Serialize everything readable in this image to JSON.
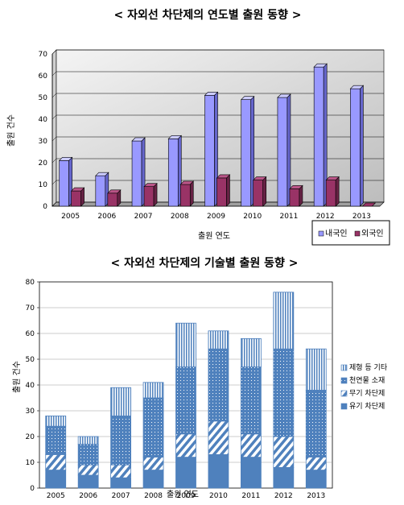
{
  "chart_data": [
    {
      "type": "bar",
      "title": "< 자외선 차단제의 연도별 출원 동향 >",
      "xlabel": "출원 연도",
      "ylabel": "출원 건수",
      "categories": [
        "2005",
        "2006",
        "2007",
        "2008",
        "2009",
        "2010",
        "2011",
        "2012",
        "2013"
      ],
      "ylim": [
        0,
        70
      ],
      "yticks": [
        0,
        10,
        20,
        30,
        40,
        50,
        60,
        70
      ],
      "series": [
        {
          "name": "내국인",
          "values": [
            21,
            14,
            30,
            31,
            51,
            49,
            50,
            64,
            54
          ]
        },
        {
          "name": "외국인",
          "values": [
            7,
            6,
            9,
            10,
            13,
            12,
            8,
            12,
            0
          ]
        }
      ],
      "grid": true,
      "legend": "bottom-right",
      "colors": {
        "series0": "#9999ff",
        "series1": "#993366"
      },
      "style": "3d"
    },
    {
      "type": "bar",
      "stacked": true,
      "title": "< 자외선 차단제의 기술별 출원 동향 >",
      "xlabel": "출원 연도",
      "ylabel": "출원 건수",
      "categories": [
        "2005",
        "2006",
        "2007",
        "2008",
        "2009",
        "2010",
        "2011",
        "2012",
        "2013"
      ],
      "ylim": [
        0,
        80
      ],
      "yticks": [
        0,
        10,
        20,
        30,
        40,
        50,
        60,
        70,
        80
      ],
      "series": [
        {
          "name": "유기 차단제",
          "values": [
            7,
            5,
            4,
            7,
            12,
            13,
            12,
            8,
            7
          ]
        },
        {
          "name": "무기 차단제",
          "values": [
            6,
            4,
            5,
            5,
            9,
            13,
            9,
            12,
            5
          ]
        },
        {
          "name": "천연물 소재",
          "values": [
            11,
            8,
            19,
            23,
            26,
            28,
            26,
            34,
            26
          ]
        },
        {
          "name": "제형 등 기타",
          "values": [
            4,
            3,
            11,
            6,
            17,
            7,
            11,
            22,
            16
          ]
        }
      ],
      "legend_order": [
        3,
        2,
        1,
        0
      ],
      "grid": true,
      "legend": "right",
      "colors": {
        "series0": "#4f81bd",
        "series1": "#4f81bd",
        "series2": "#4f81bd",
        "series3": "#4f81bd"
      }
    }
  ]
}
